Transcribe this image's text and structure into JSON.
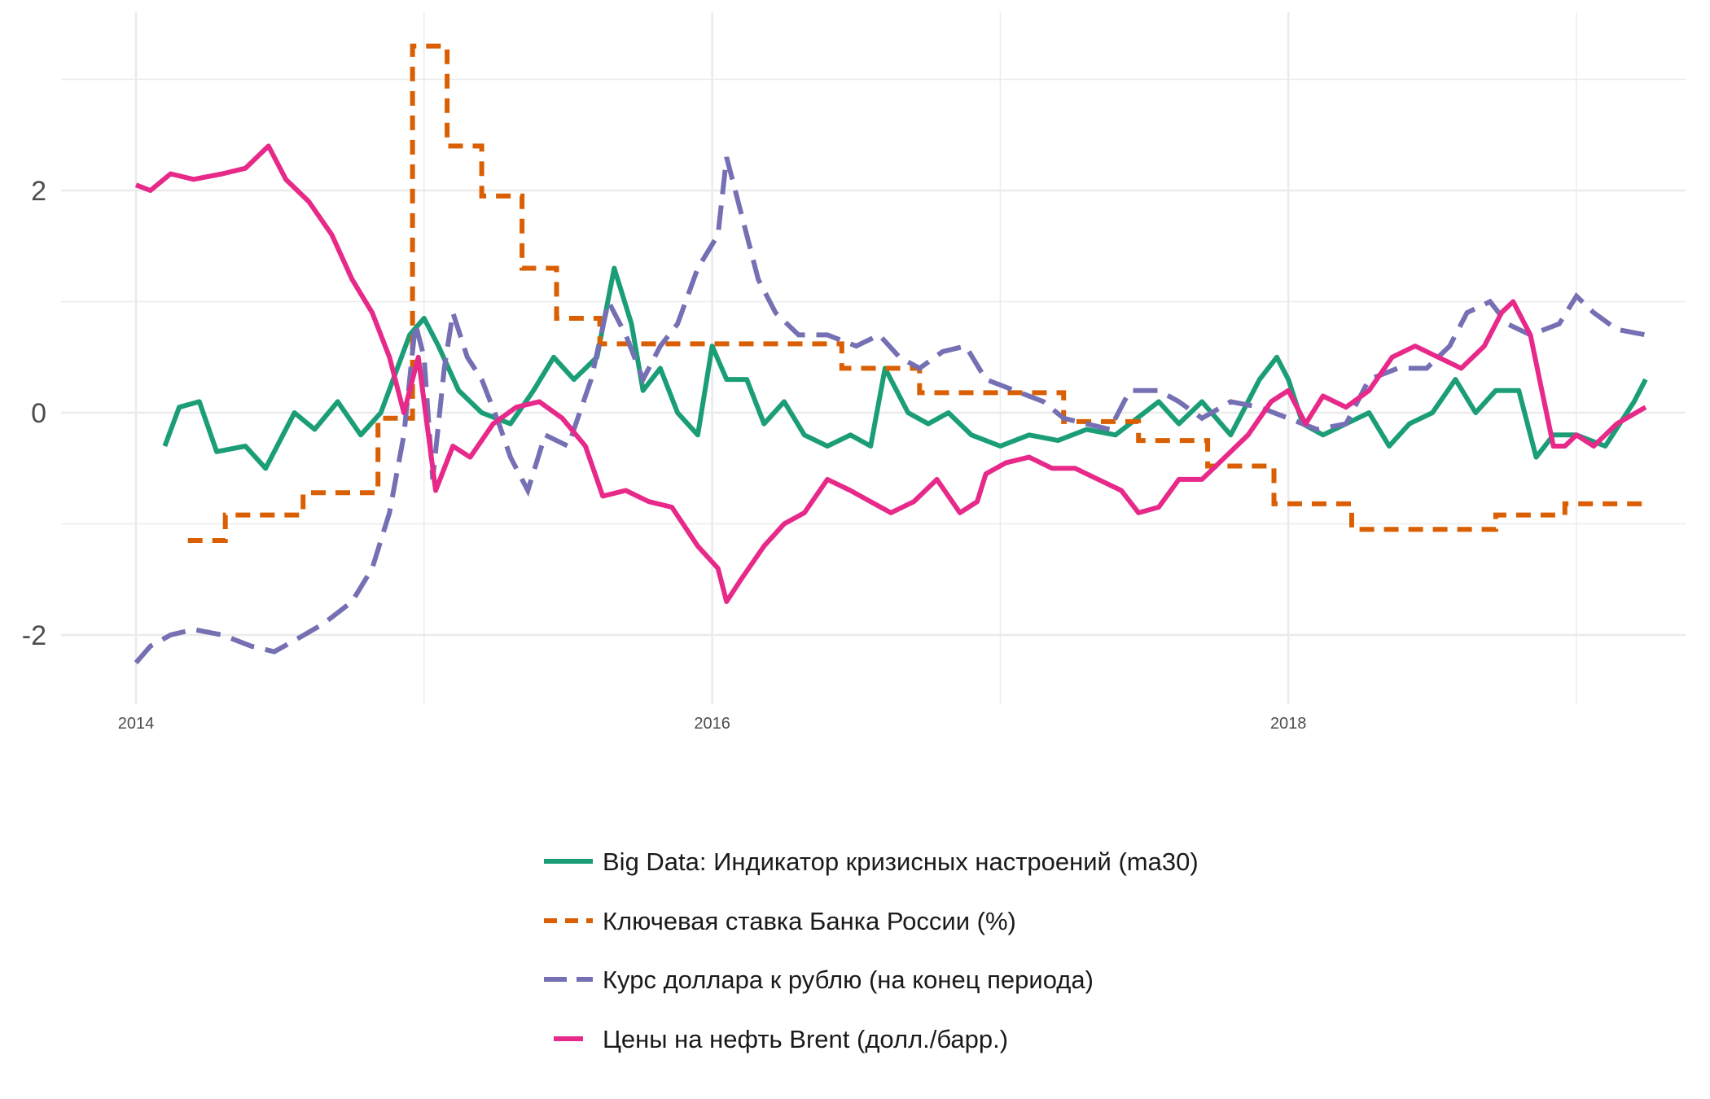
{
  "chart_data": {
    "type": "line",
    "title": "",
    "xlabel": "",
    "ylabel": "",
    "xlim": [
      2014.0,
      2019.4
    ],
    "ylim": [
      -2.55,
      3.55
    ],
    "x_ticks": [
      2014,
      2016,
      2018
    ],
    "x_tick_labels": [
      "2014",
      "2016",
      "2018"
    ],
    "y_ticks": [
      -2,
      0,
      2
    ],
    "y_tick_labels": [
      "-2",
      "0",
      "2"
    ],
    "grid": true,
    "legend_position": "bottom",
    "series": [
      {
        "name": "Big Data: Индикатор кризисных настроений (ma30)",
        "color": "#1b9e77",
        "style": "solid",
        "points": [
          [
            2014.1,
            -0.3
          ],
          [
            2014.15,
            0.05
          ],
          [
            2014.22,
            0.1
          ],
          [
            2014.28,
            -0.35
          ],
          [
            2014.38,
            -0.3
          ],
          [
            2014.45,
            -0.5
          ],
          [
            2014.55,
            0.0
          ],
          [
            2014.62,
            -0.15
          ],
          [
            2014.7,
            0.1
          ],
          [
            2014.78,
            -0.2
          ],
          [
            2014.85,
            0.0
          ],
          [
            2014.95,
            0.7
          ],
          [
            2015.0,
            0.85
          ],
          [
            2015.05,
            0.6
          ],
          [
            2015.12,
            0.2
          ],
          [
            2015.2,
            0.0
          ],
          [
            2015.3,
            -0.1
          ],
          [
            2015.38,
            0.2
          ],
          [
            2015.45,
            0.5
          ],
          [
            2015.52,
            0.3
          ],
          [
            2015.6,
            0.5
          ],
          [
            2015.66,
            1.3
          ],
          [
            2015.72,
            0.8
          ],
          [
            2015.76,
            0.2
          ],
          [
            2015.82,
            0.4
          ],
          [
            2015.88,
            0.0
          ],
          [
            2015.95,
            -0.2
          ],
          [
            2016.0,
            0.6
          ],
          [
            2016.05,
            0.3
          ],
          [
            2016.12,
            0.3
          ],
          [
            2016.18,
            -0.1
          ],
          [
            2016.25,
            0.1
          ],
          [
            2016.32,
            -0.2
          ],
          [
            2016.4,
            -0.3
          ],
          [
            2016.48,
            -0.2
          ],
          [
            2016.55,
            -0.3
          ],
          [
            2016.6,
            0.4
          ],
          [
            2016.68,
            0.0
          ],
          [
            2016.75,
            -0.1
          ],
          [
            2016.82,
            0.0
          ],
          [
            2016.9,
            -0.2
          ],
          [
            2017.0,
            -0.3
          ],
          [
            2017.1,
            -0.2
          ],
          [
            2017.2,
            -0.25
          ],
          [
            2017.3,
            -0.15
          ],
          [
            2017.4,
            -0.2
          ],
          [
            2017.5,
            0.0
          ],
          [
            2017.55,
            0.1
          ],
          [
            2017.62,
            -0.1
          ],
          [
            2017.7,
            0.1
          ],
          [
            2017.8,
            -0.2
          ],
          [
            2017.9,
            0.3
          ],
          [
            2017.96,
            0.5
          ],
          [
            2018.0,
            0.3
          ],
          [
            2018.05,
            -0.1
          ],
          [
            2018.12,
            -0.2
          ],
          [
            2018.2,
            -0.1
          ],
          [
            2018.28,
            0.0
          ],
          [
            2018.35,
            -0.3
          ],
          [
            2018.42,
            -0.1
          ],
          [
            2018.5,
            0.0
          ],
          [
            2018.58,
            0.3
          ],
          [
            2018.65,
            0.0
          ],
          [
            2018.72,
            0.2
          ],
          [
            2018.8,
            0.2
          ],
          [
            2018.86,
            -0.4
          ],
          [
            2018.92,
            -0.2
          ],
          [
            2019.0,
            -0.2
          ],
          [
            2019.1,
            -0.3
          ],
          [
            2019.2,
            0.1
          ],
          [
            2019.24,
            0.3
          ]
        ]
      },
      {
        "name": "Ключевая ставка Банка России (%)",
        "color": "#d95f02",
        "style": "dash",
        "points": [
          [
            2014.18,
            -1.15
          ],
          [
            2014.31,
            -1.15
          ],
          [
            2014.31,
            -0.92
          ],
          [
            2014.58,
            -0.92
          ],
          [
            2014.58,
            -0.72
          ],
          [
            2014.84,
            -0.72
          ],
          [
            2014.84,
            -0.05
          ],
          [
            2014.96,
            -0.05
          ],
          [
            2014.96,
            3.3
          ],
          [
            2015.08,
            3.3
          ],
          [
            2015.08,
            2.4
          ],
          [
            2015.2,
            2.4
          ],
          [
            2015.2,
            1.95
          ],
          [
            2015.34,
            1.95
          ],
          [
            2015.34,
            1.3
          ],
          [
            2015.46,
            1.3
          ],
          [
            2015.46,
            0.85
          ],
          [
            2015.61,
            0.85
          ],
          [
            2015.61,
            0.62
          ],
          [
            2016.45,
            0.62
          ],
          [
            2016.45,
            0.4
          ],
          [
            2016.72,
            0.4
          ],
          [
            2016.72,
            0.18
          ],
          [
            2017.22,
            0.18
          ],
          [
            2017.22,
            -0.08
          ],
          [
            2017.48,
            -0.08
          ],
          [
            2017.48,
            -0.25
          ],
          [
            2017.72,
            -0.25
          ],
          [
            2017.72,
            -0.48
          ],
          [
            2017.95,
            -0.48
          ],
          [
            2017.95,
            -0.82
          ],
          [
            2018.22,
            -0.82
          ],
          [
            2018.22,
            -1.05
          ],
          [
            2018.72,
            -1.05
          ],
          [
            2018.72,
            -0.92
          ],
          [
            2018.96,
            -0.92
          ],
          [
            2018.96,
            -0.82
          ],
          [
            2019.24,
            -0.82
          ]
        ]
      },
      {
        "name": "Курс доллара к рублю (на конец периода)",
        "color": "#7570b3",
        "style": "dash",
        "points": [
          [
            2014.0,
            -2.25
          ],
          [
            2014.05,
            -2.1
          ],
          [
            2014.12,
            -2.0
          ],
          [
            2014.2,
            -1.95
          ],
          [
            2014.3,
            -2.0
          ],
          [
            2014.4,
            -2.1
          ],
          [
            2014.48,
            -2.15
          ],
          [
            2014.55,
            -2.05
          ],
          [
            2014.65,
            -1.9
          ],
          [
            2014.75,
            -1.7
          ],
          [
            2014.82,
            -1.4
          ],
          [
            2014.88,
            -0.9
          ],
          [
            2014.93,
            -0.2
          ],
          [
            2014.97,
            0.8
          ],
          [
            2015.0,
            0.5
          ],
          [
            2015.03,
            -0.6
          ],
          [
            2015.07,
            0.4
          ],
          [
            2015.1,
            0.9
          ],
          [
            2015.15,
            0.5
          ],
          [
            2015.2,
            0.3
          ],
          [
            2015.26,
            -0.1
          ],
          [
            2015.3,
            -0.4
          ],
          [
            2015.36,
            -0.7
          ],
          [
            2015.42,
            -0.2
          ],
          [
            2015.5,
            -0.3
          ],
          [
            2015.58,
            0.3
          ],
          [
            2015.64,
            1.0
          ],
          [
            2015.7,
            0.7
          ],
          [
            2015.76,
            0.3
          ],
          [
            2015.82,
            0.6
          ],
          [
            2015.88,
            0.8
          ],
          [
            2015.95,
            1.3
          ],
          [
            2016.02,
            1.6
          ],
          [
            2016.05,
            2.3
          ],
          [
            2016.1,
            1.8
          ],
          [
            2016.16,
            1.2
          ],
          [
            2016.22,
            0.9
          ],
          [
            2016.3,
            0.7
          ],
          [
            2016.4,
            0.7
          ],
          [
            2016.5,
            0.6
          ],
          [
            2016.58,
            0.7
          ],
          [
            2016.65,
            0.5
          ],
          [
            2016.72,
            0.4
          ],
          [
            2016.8,
            0.55
          ],
          [
            2016.88,
            0.6
          ],
          [
            2016.95,
            0.3
          ],
          [
            2017.05,
            0.2
          ],
          [
            2017.15,
            0.1
          ],
          [
            2017.22,
            -0.05
          ],
          [
            2017.3,
            -0.1
          ],
          [
            2017.38,
            -0.15
          ],
          [
            2017.45,
            0.2
          ],
          [
            2017.55,
            0.2
          ],
          [
            2017.62,
            0.1
          ],
          [
            2017.7,
            -0.05
          ],
          [
            2017.8,
            0.1
          ],
          [
            2017.9,
            0.05
          ],
          [
            2018.0,
            -0.05
          ],
          [
            2018.1,
            -0.15
          ],
          [
            2018.2,
            -0.1
          ],
          [
            2018.28,
            0.3
          ],
          [
            2018.38,
            0.4
          ],
          [
            2018.48,
            0.4
          ],
          [
            2018.56,
            0.6
          ],
          [
            2018.62,
            0.9
          ],
          [
            2018.7,
            1.0
          ],
          [
            2018.76,
            0.8
          ],
          [
            2018.84,
            0.7
          ],
          [
            2018.94,
            0.8
          ],
          [
            2019.0,
            1.05
          ],
          [
            2019.06,
            0.9
          ],
          [
            2019.14,
            0.75
          ],
          [
            2019.24,
            0.7
          ]
        ]
      },
      {
        "name": "Цены на нефть Brent (долл./барр.)",
        "color": "#e7298a",
        "style": "solid",
        "points": [
          [
            2014.0,
            2.05
          ],
          [
            2014.05,
            2.0
          ],
          [
            2014.12,
            2.15
          ],
          [
            2014.2,
            2.1
          ],
          [
            2014.3,
            2.15
          ],
          [
            2014.38,
            2.2
          ],
          [
            2014.46,
            2.4
          ],
          [
            2014.52,
            2.1
          ],
          [
            2014.6,
            1.9
          ],
          [
            2014.68,
            1.6
          ],
          [
            2014.75,
            1.2
          ],
          [
            2014.82,
            0.9
          ],
          [
            2014.88,
            0.5
          ],
          [
            2014.93,
            0.0
          ],
          [
            2014.98,
            0.5
          ],
          [
            2015.04,
            -0.7
          ],
          [
            2015.1,
            -0.3
          ],
          [
            2015.16,
            -0.4
          ],
          [
            2015.24,
            -0.1
          ],
          [
            2015.32,
            0.05
          ],
          [
            2015.4,
            0.1
          ],
          [
            2015.48,
            -0.05
          ],
          [
            2015.56,
            -0.3
          ],
          [
            2015.62,
            -0.75
          ],
          [
            2015.7,
            -0.7
          ],
          [
            2015.78,
            -0.8
          ],
          [
            2015.86,
            -0.85
          ],
          [
            2015.95,
            -1.2
          ],
          [
            2016.02,
            -1.4
          ],
          [
            2016.05,
            -1.7
          ],
          [
            2016.1,
            -1.5
          ],
          [
            2016.18,
            -1.2
          ],
          [
            2016.25,
            -1.0
          ],
          [
            2016.32,
            -0.9
          ],
          [
            2016.4,
            -0.6
          ],
          [
            2016.48,
            -0.7
          ],
          [
            2016.55,
            -0.8
          ],
          [
            2016.62,
            -0.9
          ],
          [
            2016.7,
            -0.8
          ],
          [
            2016.78,
            -0.6
          ],
          [
            2016.86,
            -0.9
          ],
          [
            2016.92,
            -0.8
          ],
          [
            2016.95,
            -0.55
          ],
          [
            2017.02,
            -0.45
          ],
          [
            2017.1,
            -0.4
          ],
          [
            2017.18,
            -0.5
          ],
          [
            2017.26,
            -0.5
          ],
          [
            2017.34,
            -0.6
          ],
          [
            2017.42,
            -0.7
          ],
          [
            2017.48,
            -0.9
          ],
          [
            2017.55,
            -0.85
          ],
          [
            2017.62,
            -0.6
          ],
          [
            2017.7,
            -0.6
          ],
          [
            2017.78,
            -0.4
          ],
          [
            2017.86,
            -0.2
          ],
          [
            2017.94,
            0.1
          ],
          [
            2018.0,
            0.2
          ],
          [
            2018.06,
            -0.1
          ],
          [
            2018.12,
            0.15
          ],
          [
            2018.2,
            0.05
          ],
          [
            2018.28,
            0.2
          ],
          [
            2018.36,
            0.5
          ],
          [
            2018.44,
            0.6
          ],
          [
            2018.52,
            0.5
          ],
          [
            2018.6,
            0.4
          ],
          [
            2018.68,
            0.6
          ],
          [
            2018.74,
            0.9
          ],
          [
            2018.78,
            1.0
          ],
          [
            2018.84,
            0.7
          ],
          [
            2018.88,
            0.2
          ],
          [
            2018.92,
            -0.3
          ],
          [
            2018.96,
            -0.3
          ],
          [
            2019.0,
            -0.2
          ],
          [
            2019.06,
            -0.3
          ],
          [
            2019.14,
            -0.1
          ],
          [
            2019.24,
            0.05
          ]
        ]
      }
    ]
  }
}
